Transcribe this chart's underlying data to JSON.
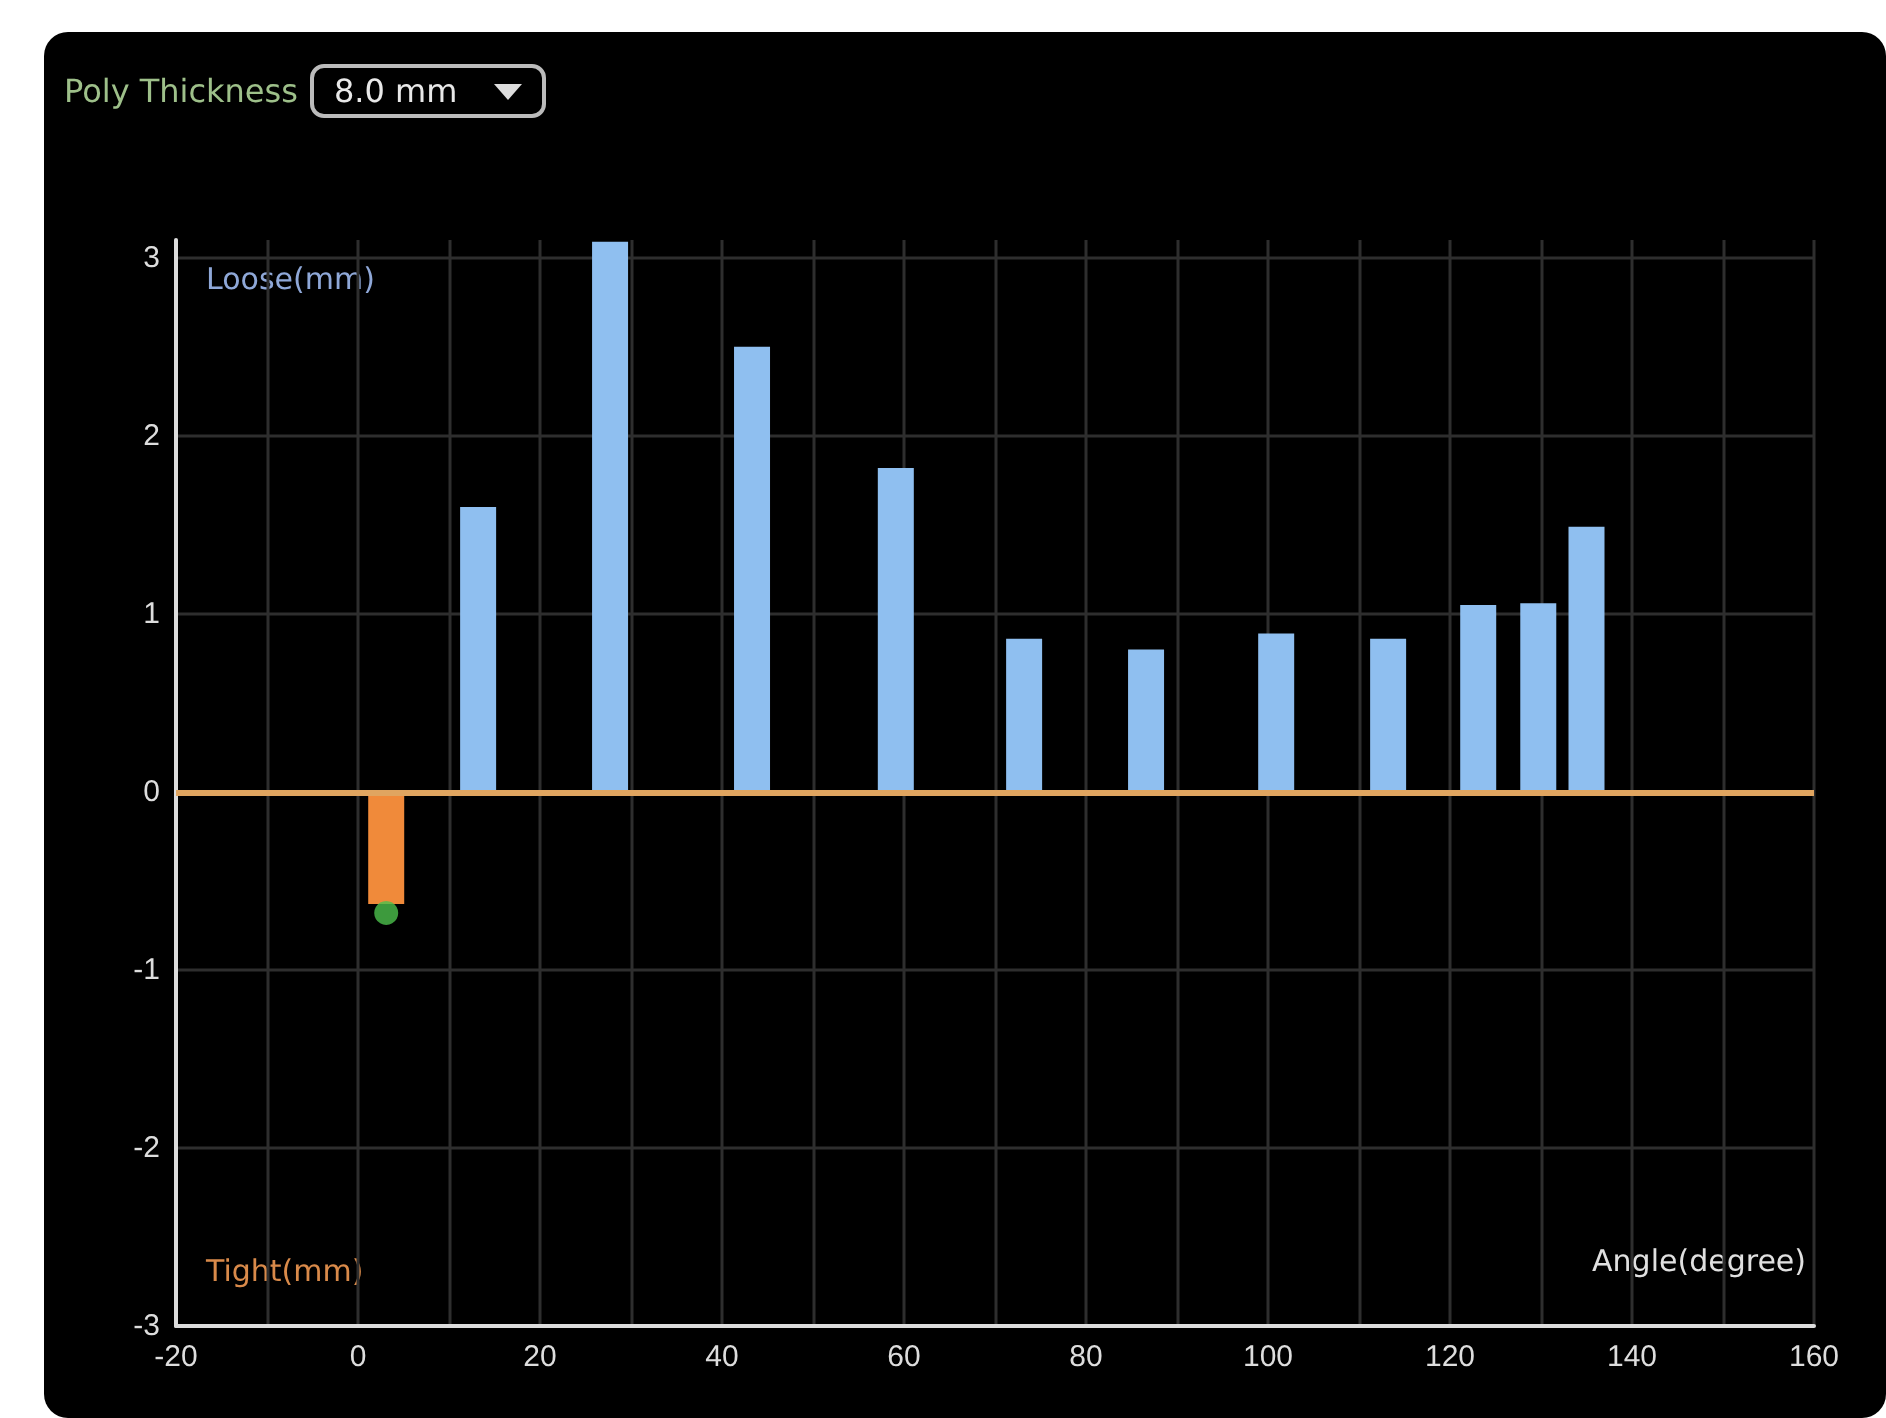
{
  "chart_data": {
    "type": "bar",
    "title": "Poly Thickness",
    "subtitle": "8.0 mm",
    "xlabel": "Angle(degree)",
    "ylabel": "Loose(mm)",
    "annotations": [
      "Tight(mm)"
    ],
    "series": [
      {
        "x": [
          3.1,
          13.2,
          27.7,
          43.3,
          59.1,
          73.2,
          86.6,
          100.9,
          113.2,
          123.1,
          129.7,
          135
        ],
        "values": [
          -0.63,
          1.6,
          3.09,
          2.5,
          1.82,
          0.86,
          0.8,
          0.89,
          0.86,
          1.05,
          1.06,
          1.49
        ],
        "color": "#8fbff0",
        "colors": [
          "#f08a3a",
          "#8fbff0",
          "#8fbff0",
          "#8fbff0",
          "#8fbff0",
          "#8fbff0",
          "#8fbff0",
          "#8fbff0",
          "#8fbff0",
          "#8fbff0",
          "#8fbff0",
          "#8fbff0"
        ]
      },
      {
        "type": "scatter",
        "x": [
          3.1
        ],
        "values": [
          -0.68
        ],
        "color": "#4cc04c",
        "marker": "circle"
      }
    ],
    "xlim": [
      -20,
      160
    ],
    "xticks": [
      -20,
      {
        "value": -10,
        "label": null
      },
      0,
      {
        "value": 10,
        "label": null
      },
      20,
      {
        "value": 30,
        "label": null
      },
      40,
      {
        "value": 50,
        "label": null
      },
      60,
      {
        "value": 70,
        "label": null
      },
      80,
      {
        "value": 90,
        "label": null
      },
      100,
      {
        "value": 110,
        "label": null
      },
      120,
      {
        "value": 130,
        "label": null
      },
      140,
      {
        "value": 150,
        "label": null
      },
      160
    ],
    "ylim": [
      -3,
      3.1
    ],
    "yticks": [
      -3,
      -2,
      -1,
      0,
      1,
      2,
      3
    ],
    "ref_lines": [
      {
        "axis": "y",
        "value": 0,
        "color": "#e0a560"
      }
    ],
    "grid": true
  }
}
